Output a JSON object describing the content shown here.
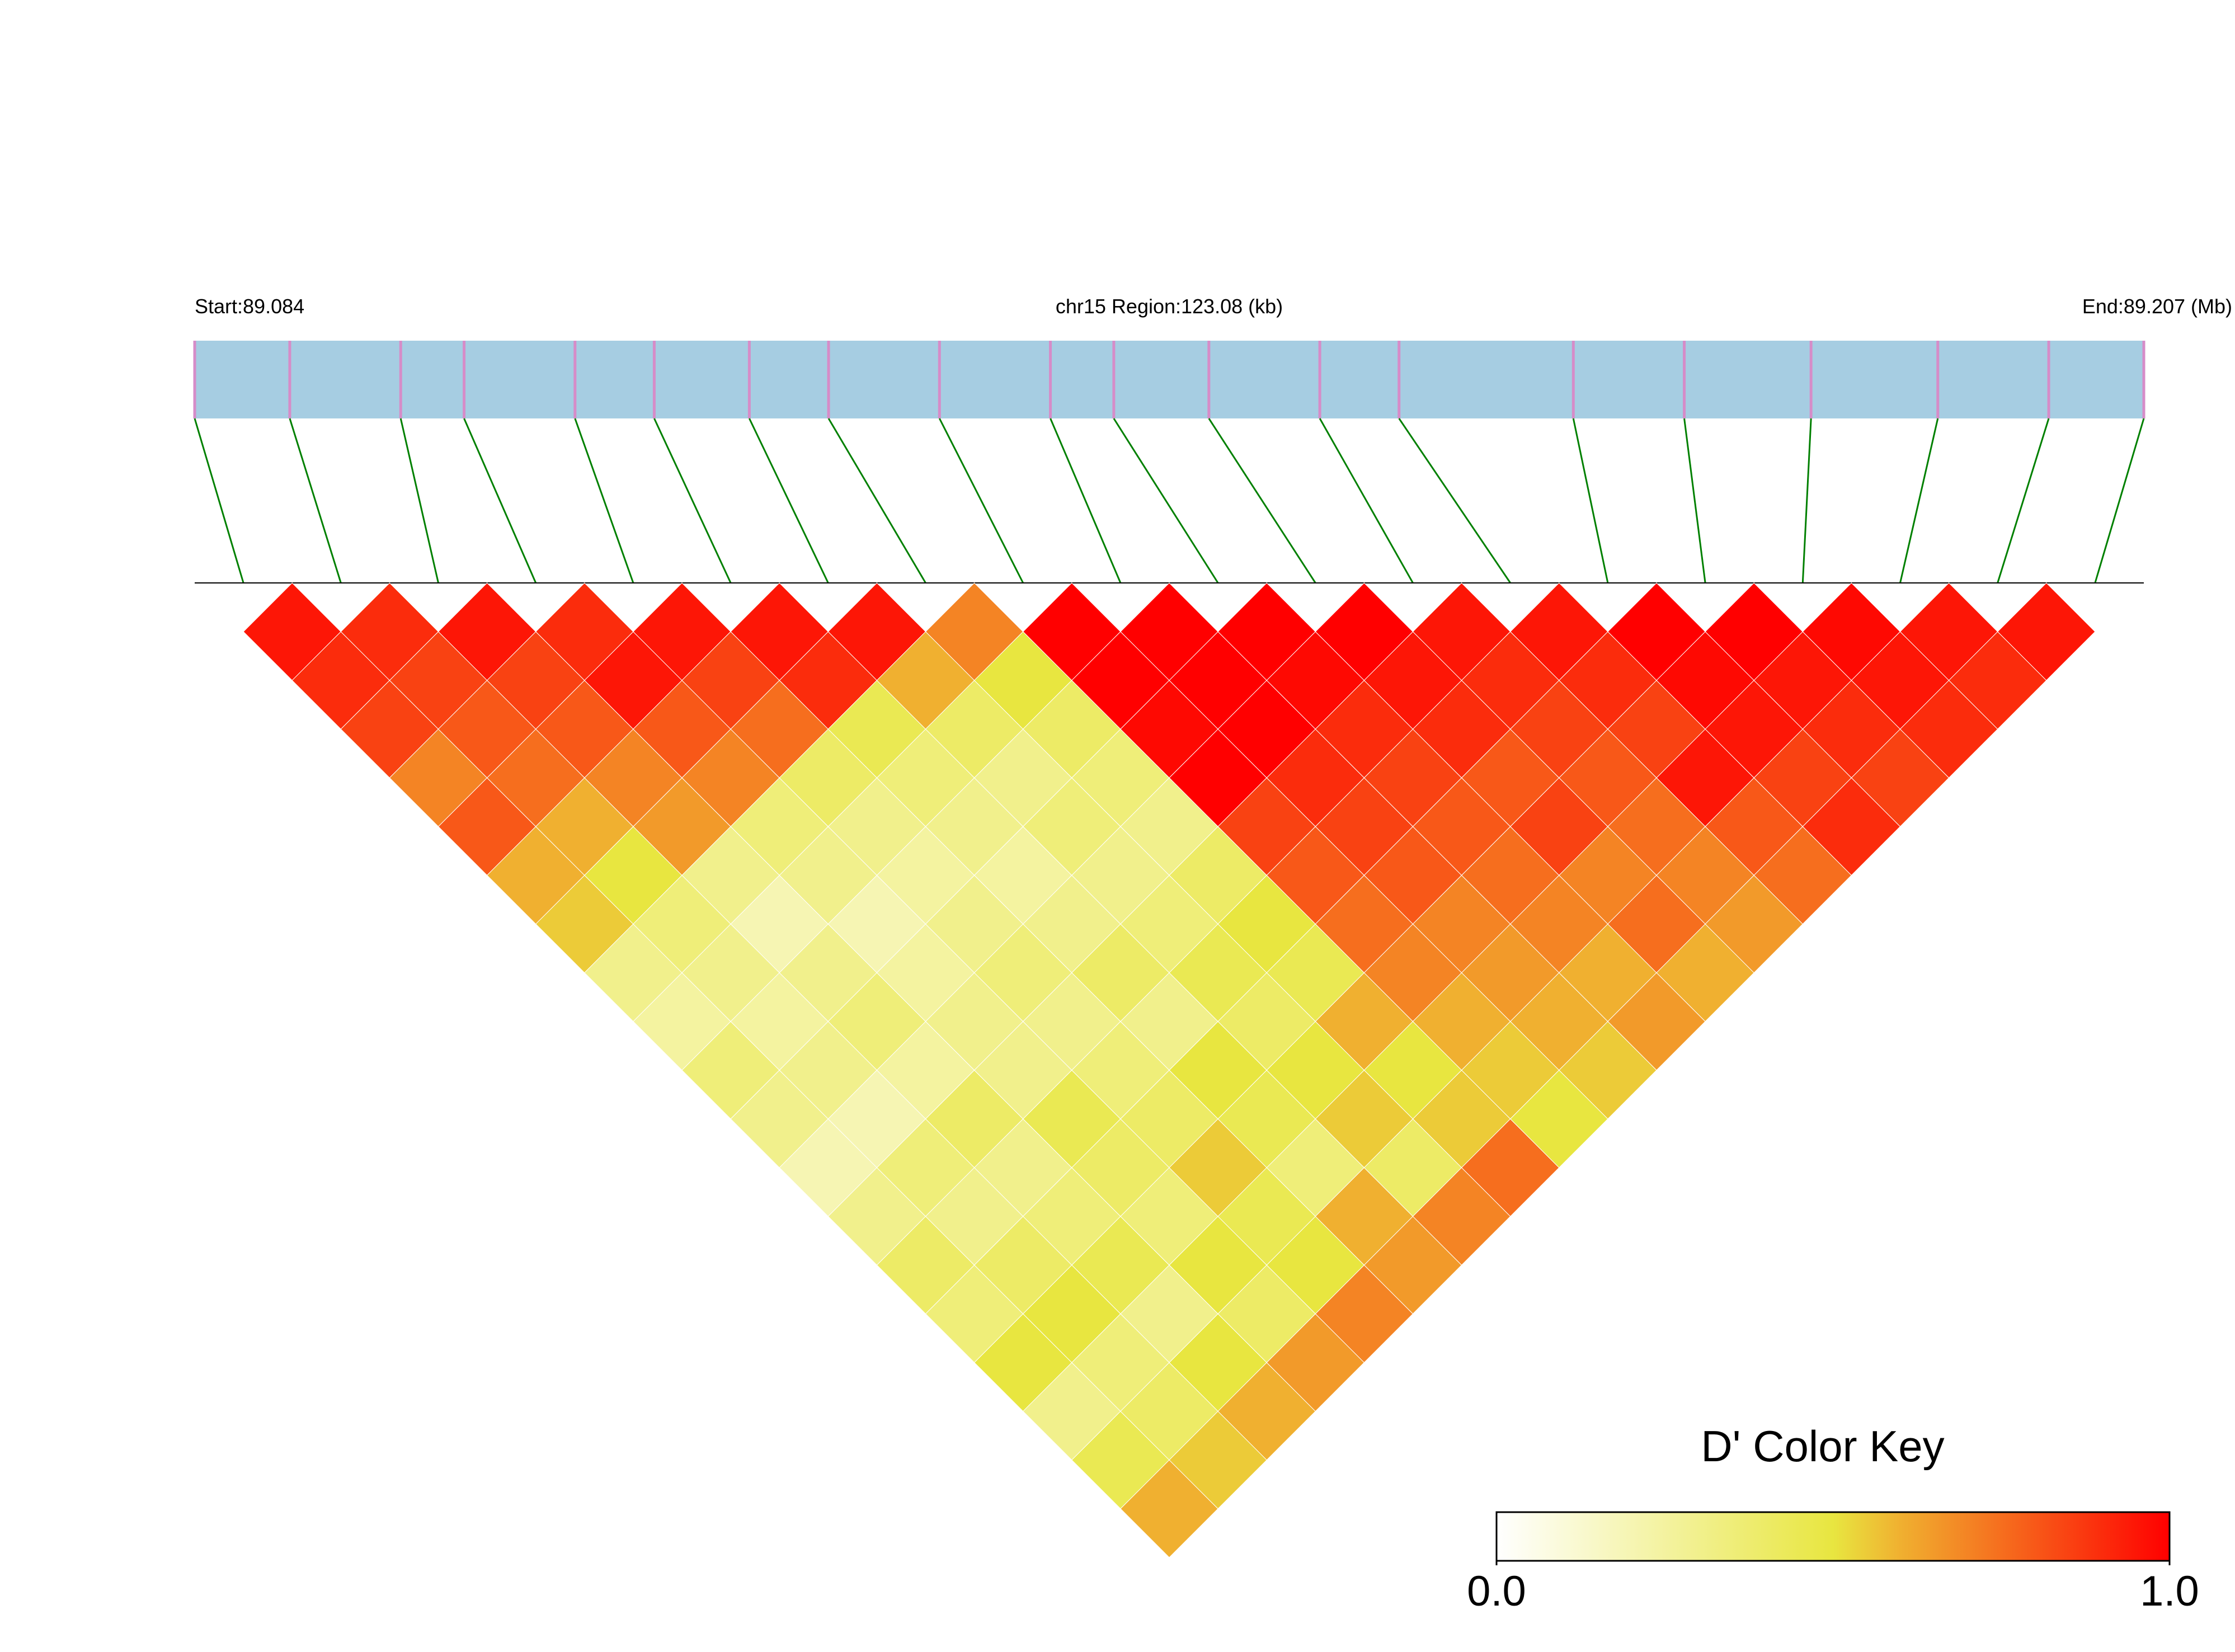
{
  "chart_data": {
    "type": "ld_heatmap",
    "start_label": "Start:89.084",
    "region_label": "chr15 Region:123.08 (kb)",
    "end_label": "End:89.207 (Mb)",
    "xlim": [
      89.084,
      89.207
    ],
    "snp_positions": [
      89.084,
      89.09,
      89.097,
      89.101,
      89.108,
      89.113,
      89.119,
      89.124,
      89.131,
      89.138,
      89.142,
      89.148,
      89.155,
      89.16,
      89.171,
      89.178,
      89.186,
      89.194,
      89.201,
      89.207
    ],
    "ld_matrix": [
      [
        0.95,
        0.9,
        0.85,
        0.7,
        0.8,
        0.6,
        0.55,
        0.3,
        0.25,
        0.35,
        0.3,
        0.2,
        0.3,
        0.4,
        0.35,
        0.5,
        0.3,
        0.45,
        0.6
      ],
      [
        0.9,
        0.85,
        0.8,
        0.75,
        0.6,
        0.5,
        0.35,
        0.3,
        0.25,
        0.3,
        0.2,
        0.35,
        0.3,
        0.4,
        0.5,
        0.35,
        0.4,
        0.55
      ],
      [
        0.95,
        0.85,
        0.8,
        0.7,
        0.65,
        0.3,
        0.2,
        0.3,
        0.35,
        0.25,
        0.4,
        0.3,
        0.35,
        0.45,
        0.3,
        0.5,
        0.6
      ],
      [
        0.9,
        0.95,
        0.8,
        0.7,
        0.35,
        0.3,
        0.2,
        0.25,
        0.3,
        0.3,
        0.45,
        0.4,
        0.35,
        0.5,
        0.4,
        0.65
      ],
      [
        0.95,
        0.85,
        0.75,
        0.4,
        0.3,
        0.25,
        0.3,
        0.35,
        0.3,
        0.35,
        0.4,
        0.55,
        0.45,
        0.5,
        0.7
      ],
      [
        0.95,
        0.9,
        0.45,
        0.35,
        0.3,
        0.25,
        0.3,
        0.4,
        0.3,
        0.5,
        0.45,
        0.35,
        0.6,
        0.65
      ],
      [
        0.95,
        0.6,
        0.4,
        0.3,
        0.35,
        0.3,
        0.35,
        0.45,
        0.4,
        0.5,
        0.55,
        0.4,
        0.7
      ],
      [
        0.7,
        0.5,
        0.4,
        0.35,
        0.3,
        0.4,
        0.5,
        0.45,
        0.6,
        0.5,
        0.55,
        0.75
      ],
      [
        1,
        1,
        0.98,
        1,
        0.85,
        0.8,
        0.75,
        0.7,
        0.6,
        0.55,
        0.5
      ],
      [
        1,
        1,
        1,
        0.9,
        0.85,
        0.8,
        0.7,
        0.65,
        0.6,
        0.55
      ],
      [
        1,
        0.98,
        0.9,
        0.85,
        0.8,
        0.75,
        0.7,
        0.6,
        0.65
      ],
      [
        1,
        0.95,
        0.9,
        0.8,
        0.85,
        0.7,
        0.75,
        0.6
      ],
      [
        0.95,
        0.9,
        0.85,
        0.8,
        0.75,
        0.7,
        0.65
      ],
      [
        0.95,
        0.9,
        0.85,
        0.95,
        0.8,
        0.75
      ],
      [
        1,
        0.98,
        0.95,
        0.85,
        0.9
      ],
      [
        1,
        0.95,
        0.9,
        0.85
      ],
      [
        0.98,
        0.95,
        0.9
      ],
      [
        0.95,
        0.9
      ],
      [
        0.95
      ]
    ],
    "color_key": {
      "title": "D' Color Key",
      "lim": [
        0,
        1
      ],
      "ticks": [
        {
          "value": 0,
          "label": "0.0"
        },
        {
          "value": 1,
          "label": "1.0"
        }
      ],
      "stops": [
        {
          "value": 0,
          "color": "#ffffff"
        },
        {
          "value": 0.5,
          "color": "#e8e640"
        },
        {
          "value": 0.6,
          "color": "#f0b030"
        },
        {
          "value": 1,
          "color": "#ff0000"
        }
      ]
    },
    "track_color": "#a6cde2",
    "snp_color": "#d68cc8",
    "link_color": "#008000"
  }
}
